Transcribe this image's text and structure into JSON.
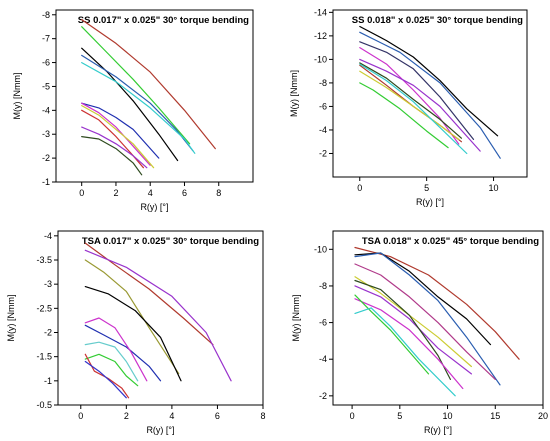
{
  "chart_data": [
    {
      "type": "line",
      "title": "SS 0.017\" x 0.025\" 30° torque bending",
      "xlabel": "R(y) [°]",
      "ylabel": "M(y) [Nmm]",
      "xlim": [
        -1.5,
        10
      ],
      "ylim": [
        -8.2,
        -1
      ],
      "xticks": [
        0,
        2,
        4,
        6,
        8
      ],
      "yticks": [
        -8,
        -7,
        -6,
        -5,
        -4,
        -3,
        -2,
        -1
      ],
      "grid": false,
      "series": [
        {
          "color": "#b03a2e",
          "x": [
            0,
            2,
            4,
            6,
            7.8
          ],
          "y": [
            -7.8,
            -6.8,
            -5.6,
            -4.0,
            -2.4
          ]
        },
        {
          "color": "#33cc33",
          "x": [
            0,
            1.5,
            3,
            4.5,
            6.3
          ],
          "y": [
            -7.5,
            -6.4,
            -5.3,
            -4.1,
            -2.6
          ]
        },
        {
          "color": "#000000",
          "x": [
            0,
            1.5,
            3,
            4.5,
            5.6
          ],
          "y": [
            -6.6,
            -5.6,
            -4.4,
            -3.0,
            -1.9
          ]
        },
        {
          "color": "#2a5db0",
          "x": [
            0,
            2,
            4,
            5.5,
            6.5
          ],
          "y": [
            -6.3,
            -5.4,
            -4.3,
            -3.2,
            -2.3
          ]
        },
        {
          "color": "#33cccc",
          "x": [
            0,
            2,
            4,
            6,
            6.6
          ],
          "y": [
            -6.0,
            -5.2,
            -4.1,
            -2.8,
            -2.2
          ]
        },
        {
          "color": "#1f2fb0",
          "x": [
            0,
            1,
            2,
            3,
            4.5
          ],
          "y": [
            -4.3,
            -4.1,
            -3.7,
            -3.2,
            -2.0
          ]
        },
        {
          "color": "#cc33cc",
          "x": [
            0,
            1,
            2,
            3,
            4
          ],
          "y": [
            -4.3,
            -3.9,
            -3.3,
            -2.5,
            -1.7
          ]
        },
        {
          "color": "#cccc33",
          "x": [
            0,
            1,
            2,
            3,
            4.2
          ],
          "y": [
            -4.2,
            -3.8,
            -3.2,
            -2.6,
            -1.6
          ]
        },
        {
          "color": "#cc3333",
          "x": [
            0,
            1,
            2,
            3,
            3.6
          ],
          "y": [
            -4.0,
            -3.6,
            -2.9,
            -2.1,
            -1.6
          ]
        },
        {
          "color": "#9933cc",
          "x": [
            0,
            1,
            2,
            3,
            3.8
          ],
          "y": [
            -3.3,
            -3.0,
            -2.6,
            -2.1,
            -1.6
          ]
        },
        {
          "color": "#2e4a1e",
          "x": [
            0,
            1,
            2,
            3,
            3.5
          ],
          "y": [
            -2.9,
            -2.8,
            -2.4,
            -1.8,
            -1.3
          ]
        }
      ]
    },
    {
      "type": "line",
      "title": "SS 0.018\" x 0.025\" 30° torque bending",
      "xlabel": "R(y) [°]",
      "ylabel": "M(y) [Nmm]",
      "xlim": [
        -2,
        12.5
      ],
      "ylim": [
        -14.2,
        0
      ],
      "xticks": [
        0,
        5,
        10
      ],
      "yticks": [
        -14,
        -12,
        -10,
        -8,
        -6,
        -4,
        -2
      ],
      "grid": false,
      "series": [
        {
          "color": "#000000",
          "x": [
            0,
            2,
            4,
            6,
            8,
            10.3
          ],
          "y": [
            -12.8,
            -11.6,
            -10.2,
            -8.2,
            -5.8,
            -3.5
          ]
        },
        {
          "color": "#2a5db0",
          "x": [
            0,
            3,
            6,
            9,
            10.5
          ],
          "y": [
            -12.3,
            -10.6,
            -8.0,
            -4.2,
            -1.6
          ]
        },
        {
          "color": "#333366",
          "x": [
            0,
            2,
            4,
            6,
            8.5
          ],
          "y": [
            -11.5,
            -10.6,
            -9.2,
            -6.8,
            -3.2
          ]
        },
        {
          "color": "#cc33cc",
          "x": [
            0,
            2,
            4,
            6,
            7.4
          ],
          "y": [
            -11.0,
            -9.6,
            -7.4,
            -5.0,
            -2.8
          ]
        },
        {
          "color": "#9933cc",
          "x": [
            0,
            2,
            4,
            6,
            9
          ],
          "y": [
            -10.0,
            -9.0,
            -7.8,
            -6.0,
            -2.2
          ]
        },
        {
          "color": "#2e4a1e",
          "x": [
            0,
            2,
            4,
            6,
            7.6
          ],
          "y": [
            -9.7,
            -8.4,
            -6.6,
            -4.9,
            -3.3
          ]
        },
        {
          "color": "#b03a2e",
          "x": [
            0,
            2,
            4,
            6,
            7.6
          ],
          "y": [
            -9.5,
            -7.8,
            -6.0,
            -4.4,
            -3.0
          ]
        },
        {
          "color": "#cccc33",
          "x": [
            0,
            2,
            4,
            6,
            7.4
          ],
          "y": [
            -9.0,
            -7.6,
            -6.0,
            -4.4,
            -3.2
          ]
        },
        {
          "color": "#33cc33",
          "x": [
            0,
            1,
            3,
            5,
            6.6
          ],
          "y": [
            -8.0,
            -7.4,
            -5.8,
            -3.9,
            -2.5
          ]
        },
        {
          "color": "#33cccc",
          "x": [
            0,
            2,
            4,
            6,
            8
          ],
          "y": [
            -9.6,
            -8.2,
            -6.4,
            -4.2,
            -2.0
          ]
        }
      ]
    },
    {
      "type": "line",
      "title": "TSA 0.017\" x 0.025\" 30° torque bending",
      "xlabel": "R(y) [°]",
      "ylabel": "M(y) [Nmm]",
      "xlim": [
        -1,
        8
      ],
      "ylim": [
        -4.1,
        -0.5
      ],
      "xticks": [
        0,
        2,
        4,
        6,
        8
      ],
      "yticks": [
        -4.0,
        -3.5,
        -3.0,
        -2.5,
        -2.0,
        -1.5,
        -1.0,
        -0.5
      ],
      "grid": false,
      "series": [
        {
          "color": "#b03a2e",
          "x": [
            0.2,
            1.5,
            3,
            4.5,
            5.8
          ],
          "y": [
            -3.85,
            -3.4,
            -2.9,
            -2.3,
            -1.75
          ]
        },
        {
          "color": "#9933cc",
          "x": [
            0.2,
            2,
            4,
            5.5,
            6.6
          ],
          "y": [
            -3.7,
            -3.35,
            -2.75,
            -2.0,
            -1.0
          ]
        },
        {
          "color": "#999933",
          "x": [
            0.2,
            1,
            2,
            3,
            4.3
          ],
          "y": [
            -3.5,
            -3.25,
            -2.85,
            -2.1,
            -1.15
          ]
        },
        {
          "color": "#000000",
          "x": [
            0.2,
            1.2,
            2.4,
            3.5,
            4.4
          ],
          "y": [
            -2.95,
            -2.8,
            -2.45,
            -1.9,
            -1.0
          ]
        },
        {
          "color": "#1f2fb0",
          "x": [
            0.2,
            1,
            2,
            3,
            3.5
          ],
          "y": [
            -2.15,
            -1.95,
            -1.7,
            -1.3,
            -1.0
          ]
        },
        {
          "color": "#cc33cc",
          "x": [
            0.2,
            0.8,
            1.5,
            2.2,
            2.9
          ],
          "y": [
            -2.2,
            -2.3,
            -2.1,
            -1.6,
            -1.0
          ]
        },
        {
          "color": "#66cccc",
          "x": [
            0.2,
            0.8,
            1.5,
            2.0,
            2.5
          ],
          "y": [
            -1.75,
            -1.8,
            -1.7,
            -1.4,
            -1.0
          ]
        },
        {
          "color": "#33cc33",
          "x": [
            0.2,
            0.8,
            1.5,
            2.0,
            2.5
          ],
          "y": [
            -1.45,
            -1.55,
            -1.4,
            -1.1,
            -0.9
          ]
        },
        {
          "color": "#cc3333",
          "x": [
            0.2,
            0.6,
            1.2,
            1.8,
            2.1
          ],
          "y": [
            -1.55,
            -1.2,
            -1.05,
            -0.85,
            -0.65
          ]
        },
        {
          "color": "#3333cc",
          "x": [
            0.2,
            0.8,
            1.4,
            2.0
          ],
          "y": [
            -1.4,
            -1.2,
            -0.95,
            -0.65
          ]
        }
      ]
    },
    {
      "type": "line",
      "title": "TSA 0.018\" x 0.025\" 45° torque bending",
      "xlabel": "R(y) [°]",
      "ylabel": "M(y) [Nmm]",
      "xlim": [
        -2,
        20
      ],
      "ylim": [
        -11,
        -1.5
      ],
      "xticks": [
        0,
        5,
        10,
        15,
        20
      ],
      "yticks": [
        -10,
        -8,
        -6,
        -4,
        -2
      ],
      "grid": false,
      "series": [
        {
          "color": "#b03a2e",
          "x": [
            0.3,
            4,
            8,
            12,
            15,
            17.5
          ],
          "y": [
            -10.1,
            -9.6,
            -8.6,
            -7.0,
            -5.5,
            -4.0
          ]
        },
        {
          "color": "#000000",
          "x": [
            0.3,
            3,
            6,
            9,
            12,
            14.5
          ],
          "y": [
            -9.7,
            -9.8,
            -8.8,
            -7.4,
            -6.2,
            -4.8
          ]
        },
        {
          "color": "#2a5db0",
          "x": [
            0.3,
            3,
            6,
            9,
            12,
            15.5
          ],
          "y": [
            -9.6,
            -9.8,
            -8.6,
            -7.2,
            -5.2,
            -2.6
          ]
        },
        {
          "color": "#b03a8a",
          "x": [
            0.3,
            3,
            6,
            9,
            12,
            15
          ],
          "y": [
            -9.2,
            -8.6,
            -7.4,
            -6.0,
            -4.4,
            -2.9
          ]
        },
        {
          "color": "#9933cc",
          "x": [
            0.3,
            3,
            6,
            9,
            12.5
          ],
          "y": [
            -8.0,
            -7.4,
            -6.2,
            -4.6,
            -3.2
          ]
        },
        {
          "color": "#cccc33",
          "x": [
            0.3,
            3,
            6,
            9,
            12.5
          ],
          "y": [
            -8.5,
            -7.6,
            -6.4,
            -5.2,
            -3.6
          ]
        },
        {
          "color": "#2e4a1e",
          "x": [
            0.3,
            3,
            6,
            9,
            10.3
          ],
          "y": [
            -8.3,
            -7.8,
            -6.4,
            -4.2,
            -2.9
          ]
        },
        {
          "color": "#cc33cc",
          "x": [
            0.3,
            3,
            6,
            9,
            11.6
          ],
          "y": [
            -7.3,
            -6.7,
            -5.6,
            -4.0,
            -2.4
          ]
        },
        {
          "color": "#33cc33",
          "x": [
            0.3,
            2,
            4,
            6,
            8
          ],
          "y": [
            -7.5,
            -6.6,
            -5.6,
            -4.4,
            -3.2
          ]
        },
        {
          "color": "#33cccc",
          "x": [
            0.3,
            2,
            4,
            7,
            10.8
          ],
          "y": [
            -6.5,
            -6.8,
            -5.8,
            -4.0,
            -2.0
          ]
        }
      ]
    }
  ]
}
